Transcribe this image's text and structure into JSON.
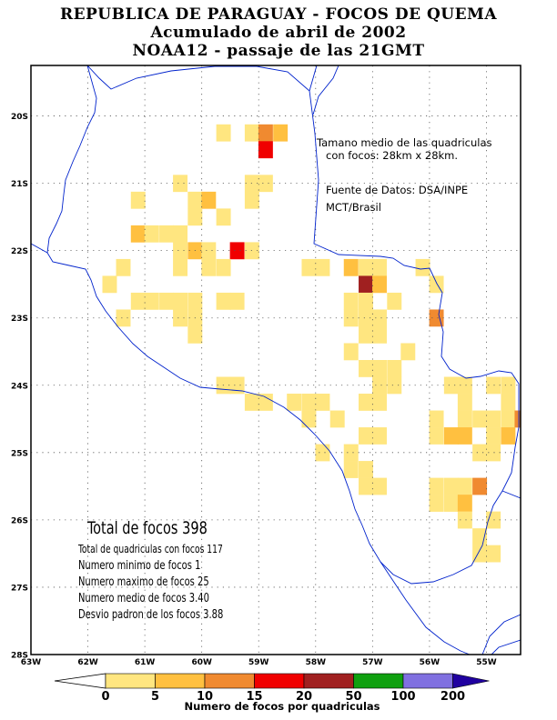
{
  "title": {
    "line1": "REPUBLICA DE PARAGUAY - FOCOS DE QUEMA",
    "line2": "Acumulado de abril de 2002",
    "line3": "NOAA12 - passaje de las 21GMT"
  },
  "notes": {
    "cell_size_line1": "Tamano medio de las quadriculas",
    "cell_size_line2": "con focos: 28km x 28km.",
    "source_line1": "Fuente de Datos: DSA/INPE",
    "source_line2": "MCT/Brasil"
  },
  "stats": {
    "total": "Total de focos 398",
    "cells": "Total de quadriculas con focos 117",
    "min": "Numero minimo de focos 1",
    "max": "Numero maximo de focos 25",
    "mean": "Numero medio de focos 3.40",
    "std": "Desvio padron de los focos 3.88"
  },
  "axes": {
    "lon_labels": [
      "63W",
      "62W",
      "61W",
      "60W",
      "59W",
      "58W",
      "57W",
      "56W",
      "55W"
    ],
    "lat_labels": [
      "20S",
      "21S",
      "22S",
      "23S",
      "24S",
      "25S",
      "26S",
      "27S",
      "28S"
    ]
  },
  "legend": {
    "label": "Numero de focos por quadriculas",
    "ticks": [
      "0",
      "5",
      "10",
      "15",
      "20",
      "50",
      "100",
      "200"
    ],
    "colors": [
      "#ffe680",
      "#ffc040",
      "#f08a30",
      "#f00000",
      "#a02020",
      "#10a010",
      "#8070e0",
      "#2000a0"
    ]
  },
  "map_data": {
    "lon_range": [
      -63,
      -54.4
    ],
    "lat_range": [
      -28,
      -19.25
    ],
    "cell_deg": 0.25,
    "cells": [
      {
        "lon": -59.62,
        "lat": -20.25,
        "level": 0
      },
      {
        "lon": -59.12,
        "lat": -20.25,
        "level": 0
      },
      {
        "lon": -58.88,
        "lat": -20.25,
        "level": 2
      },
      {
        "lon": -58.62,
        "lat": -20.25,
        "level": 1
      },
      {
        "lon": -58.88,
        "lat": -20.5,
        "level": 3
      },
      {
        "lon": -60.38,
        "lat": -21.0,
        "level": 0
      },
      {
        "lon": -59.12,
        "lat": -21.0,
        "level": 0
      },
      {
        "lon": -58.88,
        "lat": -21.0,
        "level": 0
      },
      {
        "lon": -61.12,
        "lat": -21.25,
        "level": 0
      },
      {
        "lon": -60.12,
        "lat": -21.25,
        "level": 0
      },
      {
        "lon": -59.88,
        "lat": -21.25,
        "level": 1
      },
      {
        "lon": -59.12,
        "lat": -21.25,
        "level": 0
      },
      {
        "lon": -60.12,
        "lat": -21.5,
        "level": 0
      },
      {
        "lon": -59.62,
        "lat": -21.5,
        "level": 0
      },
      {
        "lon": -61.12,
        "lat": -21.75,
        "level": 1
      },
      {
        "lon": -60.88,
        "lat": -21.75,
        "level": 0
      },
      {
        "lon": -60.62,
        "lat": -21.75,
        "level": 0
      },
      {
        "lon": -60.38,
        "lat": -21.75,
        "level": 0
      },
      {
        "lon": -60.38,
        "lat": -22.0,
        "level": 0
      },
      {
        "lon": -60.12,
        "lat": -22.0,
        "level": 1
      },
      {
        "lon": -59.88,
        "lat": -22.0,
        "level": 0
      },
      {
        "lon": -59.38,
        "lat": -22.0,
        "level": 3
      },
      {
        "lon": -59.12,
        "lat": -22.0,
        "level": 0
      },
      {
        "lon": -61.38,
        "lat": -22.25,
        "level": 0
      },
      {
        "lon": -60.38,
        "lat": -22.25,
        "level": 0
      },
      {
        "lon": -59.88,
        "lat": -22.25,
        "level": 0
      },
      {
        "lon": -59.62,
        "lat": -22.25,
        "level": 0
      },
      {
        "lon": -58.12,
        "lat": -22.25,
        "level": 0
      },
      {
        "lon": -57.88,
        "lat": -22.25,
        "level": 0
      },
      {
        "lon": -57.38,
        "lat": -22.25,
        "level": 1
      },
      {
        "lon": -57.12,
        "lat": -22.25,
        "level": 0
      },
      {
        "lon": -56.88,
        "lat": -22.25,
        "level": 0
      },
      {
        "lon": -56.12,
        "lat": -22.25,
        "level": 0
      },
      {
        "lon": -61.62,
        "lat": -22.5,
        "level": 0
      },
      {
        "lon": -57.12,
        "lat": -22.5,
        "level": 4
      },
      {
        "lon": -56.88,
        "lat": -22.5,
        "level": 1
      },
      {
        "lon": -55.88,
        "lat": -22.5,
        "level": 0
      },
      {
        "lon": -61.12,
        "lat": -22.75,
        "level": 0
      },
      {
        "lon": -60.88,
        "lat": -22.75,
        "level": 0
      },
      {
        "lon": -60.62,
        "lat": -22.75,
        "level": 0
      },
      {
        "lon": -60.38,
        "lat": -22.75,
        "level": 0
      },
      {
        "lon": -60.12,
        "lat": -22.75,
        "level": 0
      },
      {
        "lon": -59.62,
        "lat": -22.75,
        "level": 0
      },
      {
        "lon": -59.38,
        "lat": -22.75,
        "level": 0
      },
      {
        "lon": -57.38,
        "lat": -22.75,
        "level": 0
      },
      {
        "lon": -57.12,
        "lat": -22.75,
        "level": 0
      },
      {
        "lon": -56.62,
        "lat": -22.75,
        "level": 0
      },
      {
        "lon": -61.38,
        "lat": -23.0,
        "level": 0
      },
      {
        "lon": -60.38,
        "lat": -23.0,
        "level": 0
      },
      {
        "lon": -60.12,
        "lat": -23.0,
        "level": 0
      },
      {
        "lon": -57.38,
        "lat": -23.0,
        "level": 0
      },
      {
        "lon": -57.12,
        "lat": -23.0,
        "level": 0
      },
      {
        "lon": -56.88,
        "lat": -23.0,
        "level": 0
      },
      {
        "lon": -55.88,
        "lat": -23.0,
        "level": 2
      },
      {
        "lon": -60.12,
        "lat": -23.25,
        "level": 0
      },
      {
        "lon": -57.12,
        "lat": -23.25,
        "level": 0
      },
      {
        "lon": -56.88,
        "lat": -23.25,
        "level": 0
      },
      {
        "lon": -57.38,
        "lat": -23.5,
        "level": 0
      },
      {
        "lon": -56.38,
        "lat": -23.5,
        "level": 0
      },
      {
        "lon": -57.12,
        "lat": -23.75,
        "level": 0
      },
      {
        "lon": -56.88,
        "lat": -23.75,
        "level": 0
      },
      {
        "lon": -56.62,
        "lat": -23.75,
        "level": 0
      },
      {
        "lon": -59.62,
        "lat": -24.0,
        "level": 0
      },
      {
        "lon": -59.38,
        "lat": -24.0,
        "level": 0
      },
      {
        "lon": -56.88,
        "lat": -24.0,
        "level": 0
      },
      {
        "lon": -56.62,
        "lat": -24.0,
        "level": 0
      },
      {
        "lon": -55.62,
        "lat": -24.0,
        "level": 0
      },
      {
        "lon": -55.38,
        "lat": -24.0,
        "level": 0
      },
      {
        "lon": -54.88,
        "lat": -24.0,
        "level": 0
      },
      {
        "lon": -54.62,
        "lat": -24.0,
        "level": 0
      },
      {
        "lon": -59.12,
        "lat": -24.25,
        "level": 0
      },
      {
        "lon": -58.88,
        "lat": -24.25,
        "level": 0
      },
      {
        "lon": -58.38,
        "lat": -24.25,
        "level": 0
      },
      {
        "lon": -58.12,
        "lat": -24.25,
        "level": 0
      },
      {
        "lon": -57.88,
        "lat": -24.25,
        "level": 0
      },
      {
        "lon": -57.12,
        "lat": -24.25,
        "level": 0
      },
      {
        "lon": -56.88,
        "lat": -24.25,
        "level": 0
      },
      {
        "lon": -55.38,
        "lat": -24.25,
        "level": 0
      },
      {
        "lon": -54.62,
        "lat": -24.25,
        "level": 0
      },
      {
        "lon": -58.12,
        "lat": -24.5,
        "level": 0
      },
      {
        "lon": -57.62,
        "lat": -24.5,
        "level": 0
      },
      {
        "lon": -55.88,
        "lat": -24.5,
        "level": 0
      },
      {
        "lon": -55.38,
        "lat": -24.5,
        "level": 0
      },
      {
        "lon": -55.12,
        "lat": -24.5,
        "level": 0
      },
      {
        "lon": -54.88,
        "lat": -24.5,
        "level": 0
      },
      {
        "lon": -54.62,
        "lat": -24.5,
        "level": 0
      },
      {
        "lon": -54.38,
        "lat": -24.5,
        "level": 2
      },
      {
        "lon": -57.12,
        "lat": -24.75,
        "level": 0
      },
      {
        "lon": -56.88,
        "lat": -24.75,
        "level": 0
      },
      {
        "lon": -55.88,
        "lat": -24.75,
        "level": 0
      },
      {
        "lon": -55.62,
        "lat": -24.75,
        "level": 1
      },
      {
        "lon": -55.38,
        "lat": -24.75,
        "level": 1
      },
      {
        "lon": -54.88,
        "lat": -24.75,
        "level": 0
      },
      {
        "lon": -54.62,
        "lat": -24.75,
        "level": 1
      },
      {
        "lon": -57.88,
        "lat": -25.0,
        "level": 0
      },
      {
        "lon": -57.38,
        "lat": -25.0,
        "level": 0
      },
      {
        "lon": -55.12,
        "lat": -25.0,
        "level": 0
      },
      {
        "lon": -54.88,
        "lat": -25.0,
        "level": 0
      },
      {
        "lon": -57.38,
        "lat": -25.25,
        "level": 0
      },
      {
        "lon": -57.12,
        "lat": -25.25,
        "level": 0
      },
      {
        "lon": -57.12,
        "lat": -25.5,
        "level": 0
      },
      {
        "lon": -56.88,
        "lat": -25.5,
        "level": 0
      },
      {
        "lon": -55.88,
        "lat": -25.5,
        "level": 0
      },
      {
        "lon": -55.62,
        "lat": -25.5,
        "level": 0
      },
      {
        "lon": -55.38,
        "lat": -25.5,
        "level": 0
      },
      {
        "lon": -55.12,
        "lat": -25.5,
        "level": 2
      },
      {
        "lon": -55.88,
        "lat": -25.75,
        "level": 0
      },
      {
        "lon": -55.62,
        "lat": -25.75,
        "level": 0
      },
      {
        "lon": -55.38,
        "lat": -25.75,
        "level": 1
      },
      {
        "lon": -55.38,
        "lat": -26.0,
        "level": 0
      },
      {
        "lon": -54.88,
        "lat": -26.0,
        "level": 0
      },
      {
        "lon": -55.12,
        "lat": -26.25,
        "level": 0
      },
      {
        "lon": -55.12,
        "lat": -26.5,
        "level": 0
      },
      {
        "lon": -54.88,
        "lat": -26.5,
        "level": 0
      }
    ]
  }
}
